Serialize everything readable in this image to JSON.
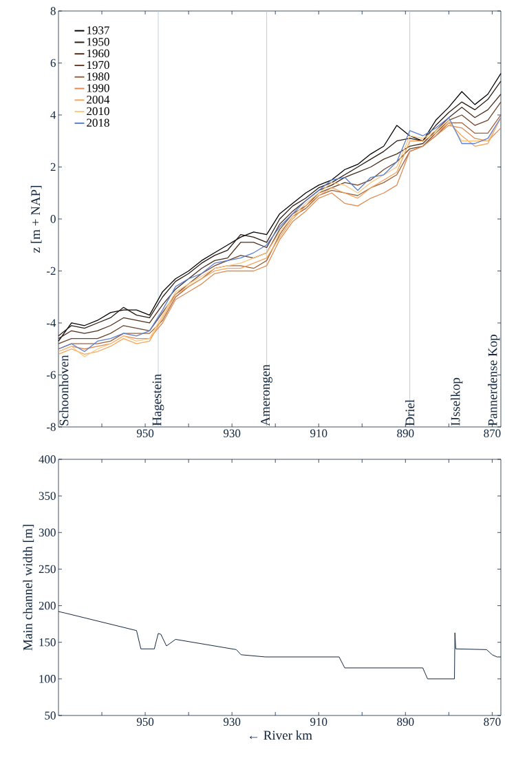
{
  "chart_data": [
    {
      "type": "line",
      "ylabel": "z [m + NAP]",
      "legend": "top left",
      "x": [
        970,
        967,
        964,
        961,
        958,
        955,
        952,
        949,
        946,
        943,
        940,
        937,
        934,
        931,
        928,
        925,
        922,
        919,
        916,
        913,
        910,
        907,
        904,
        901,
        898,
        895,
        892,
        889,
        886,
        883,
        880,
        877,
        874,
        871,
        868
      ],
      "xlim": [
        970,
        868
      ],
      "xticks": [
        {
          "value": 960,
          "label": null
        },
        950,
        {
          "value": 940,
          "label": null
        },
        930,
        {
          "value": 920,
          "label": null
        },
        910,
        {
          "value": 900,
          "label": null
        },
        890,
        {
          "value": 880,
          "label": null
        },
        870
      ],
      "ylim": [
        -8,
        8
      ],
      "yticks": [
        -8,
        -6,
        -4,
        -2,
        0,
        2,
        4,
        6,
        8
      ],
      "series": [
        {
          "name": "1937",
          "color": "#000000",
          "values": [
            -4.7,
            -4.0,
            -4.1,
            -3.9,
            -3.6,
            -3.5,
            -3.5,
            -3.7,
            -2.8,
            -2.3,
            -2.0,
            -1.6,
            -1.3,
            -1.0,
            -0.7,
            -0.5,
            -0.6,
            0.2,
            0.6,
            1.0,
            1.3,
            1.5,
            1.9,
            2.1,
            2.5,
            2.8,
            3.6,
            3.2,
            3.0,
            3.8,
            4.3,
            4.9,
            4.4,
            4.8,
            5.6
          ]
        },
        {
          "name": "1950",
          "color": "#2b1a10",
          "values": [
            -4.5,
            -4.1,
            -4.2,
            -4.0,
            -3.8,
            -3.4,
            -3.7,
            -3.8,
            -3.0,
            -2.4,
            -2.1,
            -1.7,
            -1.4,
            -1.2,
            -0.6,
            -0.7,
            -0.9,
            0.0,
            0.5,
            0.8,
            1.2,
            1.4,
            1.7,
            2.0,
            2.3,
            2.6,
            3.0,
            3.1,
            3.0,
            3.6,
            4.1,
            4.5,
            4.2,
            4.6,
            5.3
          ]
        },
        {
          "name": "1960",
          "color": "#4a2c1a",
          "values": [
            -4.6,
            -4.3,
            -4.4,
            -4.3,
            -4.1,
            -3.8,
            -3.9,
            -4.0,
            -3.3,
            -2.7,
            -2.3,
            -1.9,
            -1.6,
            -1.5,
            -0.9,
            -0.9,
            -1.1,
            -0.2,
            0.3,
            0.7,
            1.1,
            1.3,
            1.6,
            1.8,
            2.0,
            2.3,
            2.5,
            2.8,
            2.9,
            3.4,
            3.9,
            4.3,
            3.9,
            4.2,
            4.8
          ]
        },
        {
          "name": "1970",
          "color": "#6e4228",
          "values": [
            -4.8,
            -4.6,
            -4.6,
            -4.6,
            -4.4,
            -4.1,
            -4.2,
            -4.3,
            -3.6,
            -2.9,
            -2.5,
            -2.1,
            -1.8,
            -1.6,
            -1.4,
            -1.5,
            -1.3,
            -0.4,
            0.2,
            0.5,
            1.0,
            1.2,
            1.4,
            1.3,
            1.5,
            1.9,
            2.2,
            2.7,
            2.8,
            3.3,
            3.8,
            4.0,
            3.6,
            3.8,
            4.5
          ]
        },
        {
          "name": "1980",
          "color": "#a0603a",
          "values": [
            -5.0,
            -4.8,
            -4.8,
            -4.8,
            -4.7,
            -4.4,
            -4.4,
            -4.4,
            -3.9,
            -3.0,
            -2.6,
            -2.3,
            -1.9,
            -1.8,
            -1.8,
            -1.9,
            -1.6,
            -0.6,
            0.1,
            0.4,
            0.9,
            1.1,
            1.0,
            0.9,
            1.2,
            1.4,
            1.7,
            2.6,
            2.8,
            3.2,
            3.7,
            3.7,
            3.3,
            3.3,
            4.0
          ]
        },
        {
          "name": "1990",
          "color": "#e08a50",
          "values": [
            -5.1,
            -4.9,
            -5.0,
            -4.9,
            -4.8,
            -4.5,
            -4.6,
            -4.6,
            -4.0,
            -3.1,
            -2.8,
            -2.5,
            -2.1,
            -2.0,
            -2.0,
            -2.0,
            -1.8,
            -0.8,
            -0.1,
            0.3,
            0.8,
            1.0,
            0.6,
            0.5,
            0.8,
            1.0,
            1.3,
            2.6,
            2.8,
            3.2,
            3.6,
            3.5,
            3.1,
            3.0,
            3.5
          ]
        },
        {
          "name": "2004",
          "color": "#f5a55a",
          "values": [
            -5.2,
            -5.0,
            -5.2,
            -5.1,
            -4.9,
            -4.6,
            -4.8,
            -4.7,
            -3.8,
            -2.9,
            -2.6,
            -2.3,
            -2.0,
            -1.9,
            -1.9,
            -1.7,
            -1.5,
            -0.7,
            0.0,
            0.5,
            0.9,
            1.2,
            1.0,
            0.8,
            1.2,
            1.5,
            1.8,
            3.0,
            3.0,
            3.3,
            3.7,
            3.2,
            2.8,
            2.9,
            3.9
          ]
        },
        {
          "name": "2010",
          "color": "#fcc780",
          "values": [
            -5.1,
            -4.9,
            -5.3,
            -5.0,
            -4.8,
            -4.5,
            -4.7,
            -4.6,
            -3.7,
            -2.8,
            -2.5,
            -2.2,
            -1.9,
            -1.8,
            -1.7,
            -1.5,
            -1.3,
            -0.5,
            0.1,
            0.6,
            1.0,
            1.4,
            1.3,
            1.0,
            1.4,
            1.7,
            2.0,
            3.2,
            3.1,
            3.4,
            3.8,
            3.0,
            3.0,
            3.0,
            3.9
          ]
        },
        {
          "name": "2018",
          "color": "#5b7fd1",
          "values": [
            -5.0,
            -4.8,
            -5.1,
            -4.7,
            -4.6,
            -4.4,
            -4.5,
            -4.3,
            -3.5,
            -2.6,
            -2.3,
            -2.1,
            -1.7,
            -1.6,
            -1.5,
            -1.3,
            -1.0,
            -0.3,
            0.2,
            0.7,
            1.1,
            1.5,
            1.6,
            1.1,
            1.6,
            1.7,
            2.2,
            3.4,
            3.2,
            3.5,
            3.9,
            2.9,
            2.9,
            3.1,
            3.9
          ]
        }
      ],
      "ref_lines": [
        {
          "axis": "x",
          "value": 947,
          "label": "Hagestein",
          "color": "#a6c2e6"
        },
        {
          "axis": "x",
          "value": 922,
          "label": "Amerongen",
          "color": "#a6c2e6"
        },
        {
          "axis": "x",
          "value": 889,
          "label": "Driel",
          "color": "#a6c2e6"
        }
      ],
      "annotations": [
        "Schoonhoven",
        "IJsselkop",
        "Pannerdense Kop"
      ]
    },
    {
      "type": "line",
      "xlabel": "← River km",
      "ylabel": "Main channel width [m]",
      "xlim": [
        970,
        868
      ],
      "xticks": [
        {
          "value": 960,
          "label": null
        },
        950,
        {
          "value": 940,
          "label": null
        },
        930,
        {
          "value": 920,
          "label": null
        },
        910,
        {
          "value": 900,
          "label": null
        },
        890,
        {
          "value": 880,
          "label": null
        },
        870
      ],
      "ylim": [
        50,
        400
      ],
      "yticks": [
        50,
        100,
        150,
        200,
        250,
        300,
        350,
        400
      ],
      "series": [
        {
          "color": "#12263f",
          "x": [
            970,
            968.5,
            952,
            951,
            947.9,
            947,
            946.4,
            945.1,
            943,
            929,
            927.9,
            922.3,
            905.3,
            904,
            886,
            884.9,
            878.7,
            878.6,
            878.4,
            871.3,
            870,
            868.9,
            868
          ],
          "values": [
            192,
            190,
            166,
            141,
            141,
            162,
            161,
            145,
            154,
            140,
            133,
            130,
            130,
            115,
            115,
            100,
            100,
            163,
            141,
            140,
            133,
            130,
            130
          ]
        }
      ]
    }
  ]
}
